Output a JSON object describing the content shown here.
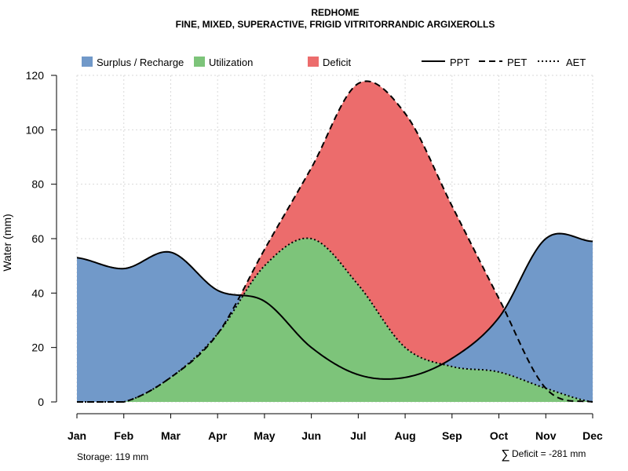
{
  "chart_data": {
    "type": "area",
    "title": "REDHOME",
    "subtitle": "FINE, MIXED, SUPERACTIVE, FRIGID VITRITORRANDIC ARGIXEROLLS",
    "xlabel": "",
    "ylabel": "Water (mm)",
    "ylim": [
      0,
      120
    ],
    "yticks": [
      0,
      20,
      40,
      60,
      80,
      100,
      120
    ],
    "grid": true,
    "categories": [
      "Jan",
      "Feb",
      "Mar",
      "Apr",
      "May",
      "Jun",
      "Jul",
      "Aug",
      "Sep",
      "Oct",
      "Nov",
      "Dec"
    ],
    "series": [
      {
        "name": "PPT",
        "line_style": "solid",
        "values": [
          53,
          49,
          55,
          41,
          37,
          20,
          10,
          9,
          16,
          31,
          60,
          59
        ]
      },
      {
        "name": "PET",
        "line_style": "dashed",
        "values": [
          0,
          0,
          9,
          25,
          56,
          86,
          117,
          106,
          72,
          38,
          5,
          0
        ]
      },
      {
        "name": "AET",
        "line_style": "dotted",
        "values": [
          0,
          0,
          9,
          25,
          50,
          60,
          43,
          20,
          13,
          11,
          5,
          0
        ]
      }
    ],
    "legend": {
      "position": "top",
      "areas": [
        {
          "label": "Surplus / Recharge",
          "color": "#7199c9"
        },
        {
          "label": "Utilization",
          "color": "#7dc47a"
        },
        {
          "label": "Deficit",
          "color": "#ec6c6c"
        }
      ],
      "lines": [
        {
          "label": "PPT",
          "style": "solid"
        },
        {
          "label": "PET",
          "style": "dashed"
        },
        {
          "label": "AET",
          "style": "dotted"
        }
      ]
    },
    "footer": {
      "storage": "Storage: 119 mm",
      "deficit_symbol": "∑",
      "deficit": "Deficit = -281 mm"
    }
  }
}
